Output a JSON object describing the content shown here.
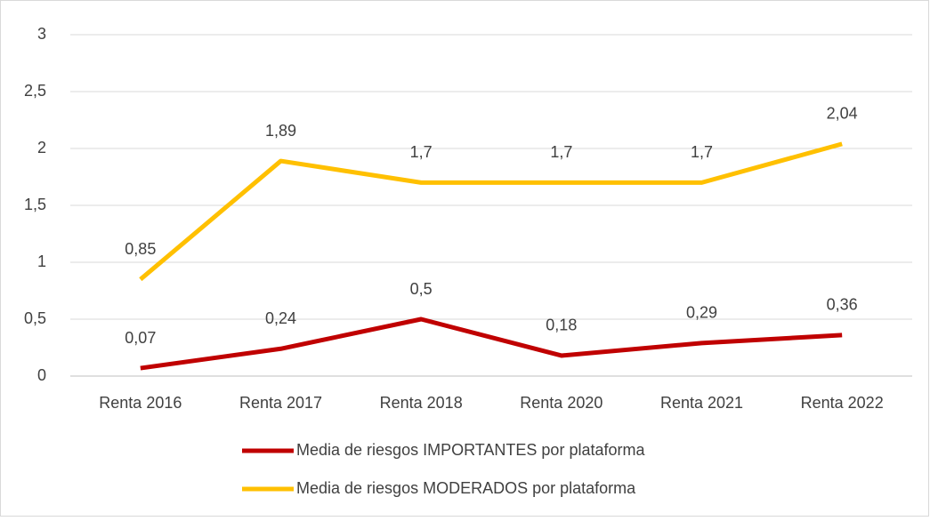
{
  "chart_data": {
    "type": "line",
    "categories": [
      "Renta 2016",
      "Renta 2017",
      "Renta 2018",
      "Renta 2020",
      "Renta 2021",
      "Renta 2022"
    ],
    "series": [
      {
        "name": "Media de riesgos IMPORTANTES por plataforma",
        "color": "#c00000",
        "values": [
          0.07,
          0.24,
          0.5,
          0.18,
          0.29,
          0.36
        ],
        "value_labels": [
          "0,07",
          "0,24",
          "0,5",
          "0,18",
          "0,29",
          "0,36"
        ]
      },
      {
        "name": "Media de riesgos MODERADOS por plataforma",
        "color": "#ffc000",
        "values": [
          0.85,
          1.89,
          1.7,
          1.7,
          1.7,
          2.04
        ],
        "value_labels": [
          "0,85",
          "1,89",
          "1,7",
          "1,7",
          "1,7",
          "2,04"
        ]
      }
    ],
    "ylim": [
      0,
      3
    ],
    "yticks": [
      0,
      {
        "value": 0.5,
        "label": "0,5"
      },
      1,
      {
        "value": 1.5,
        "label": "1,5"
      },
      2,
      {
        "value": 2.5,
        "label": "2,5"
      },
      3
    ],
    "grid": true,
    "legend": "bottom"
  }
}
